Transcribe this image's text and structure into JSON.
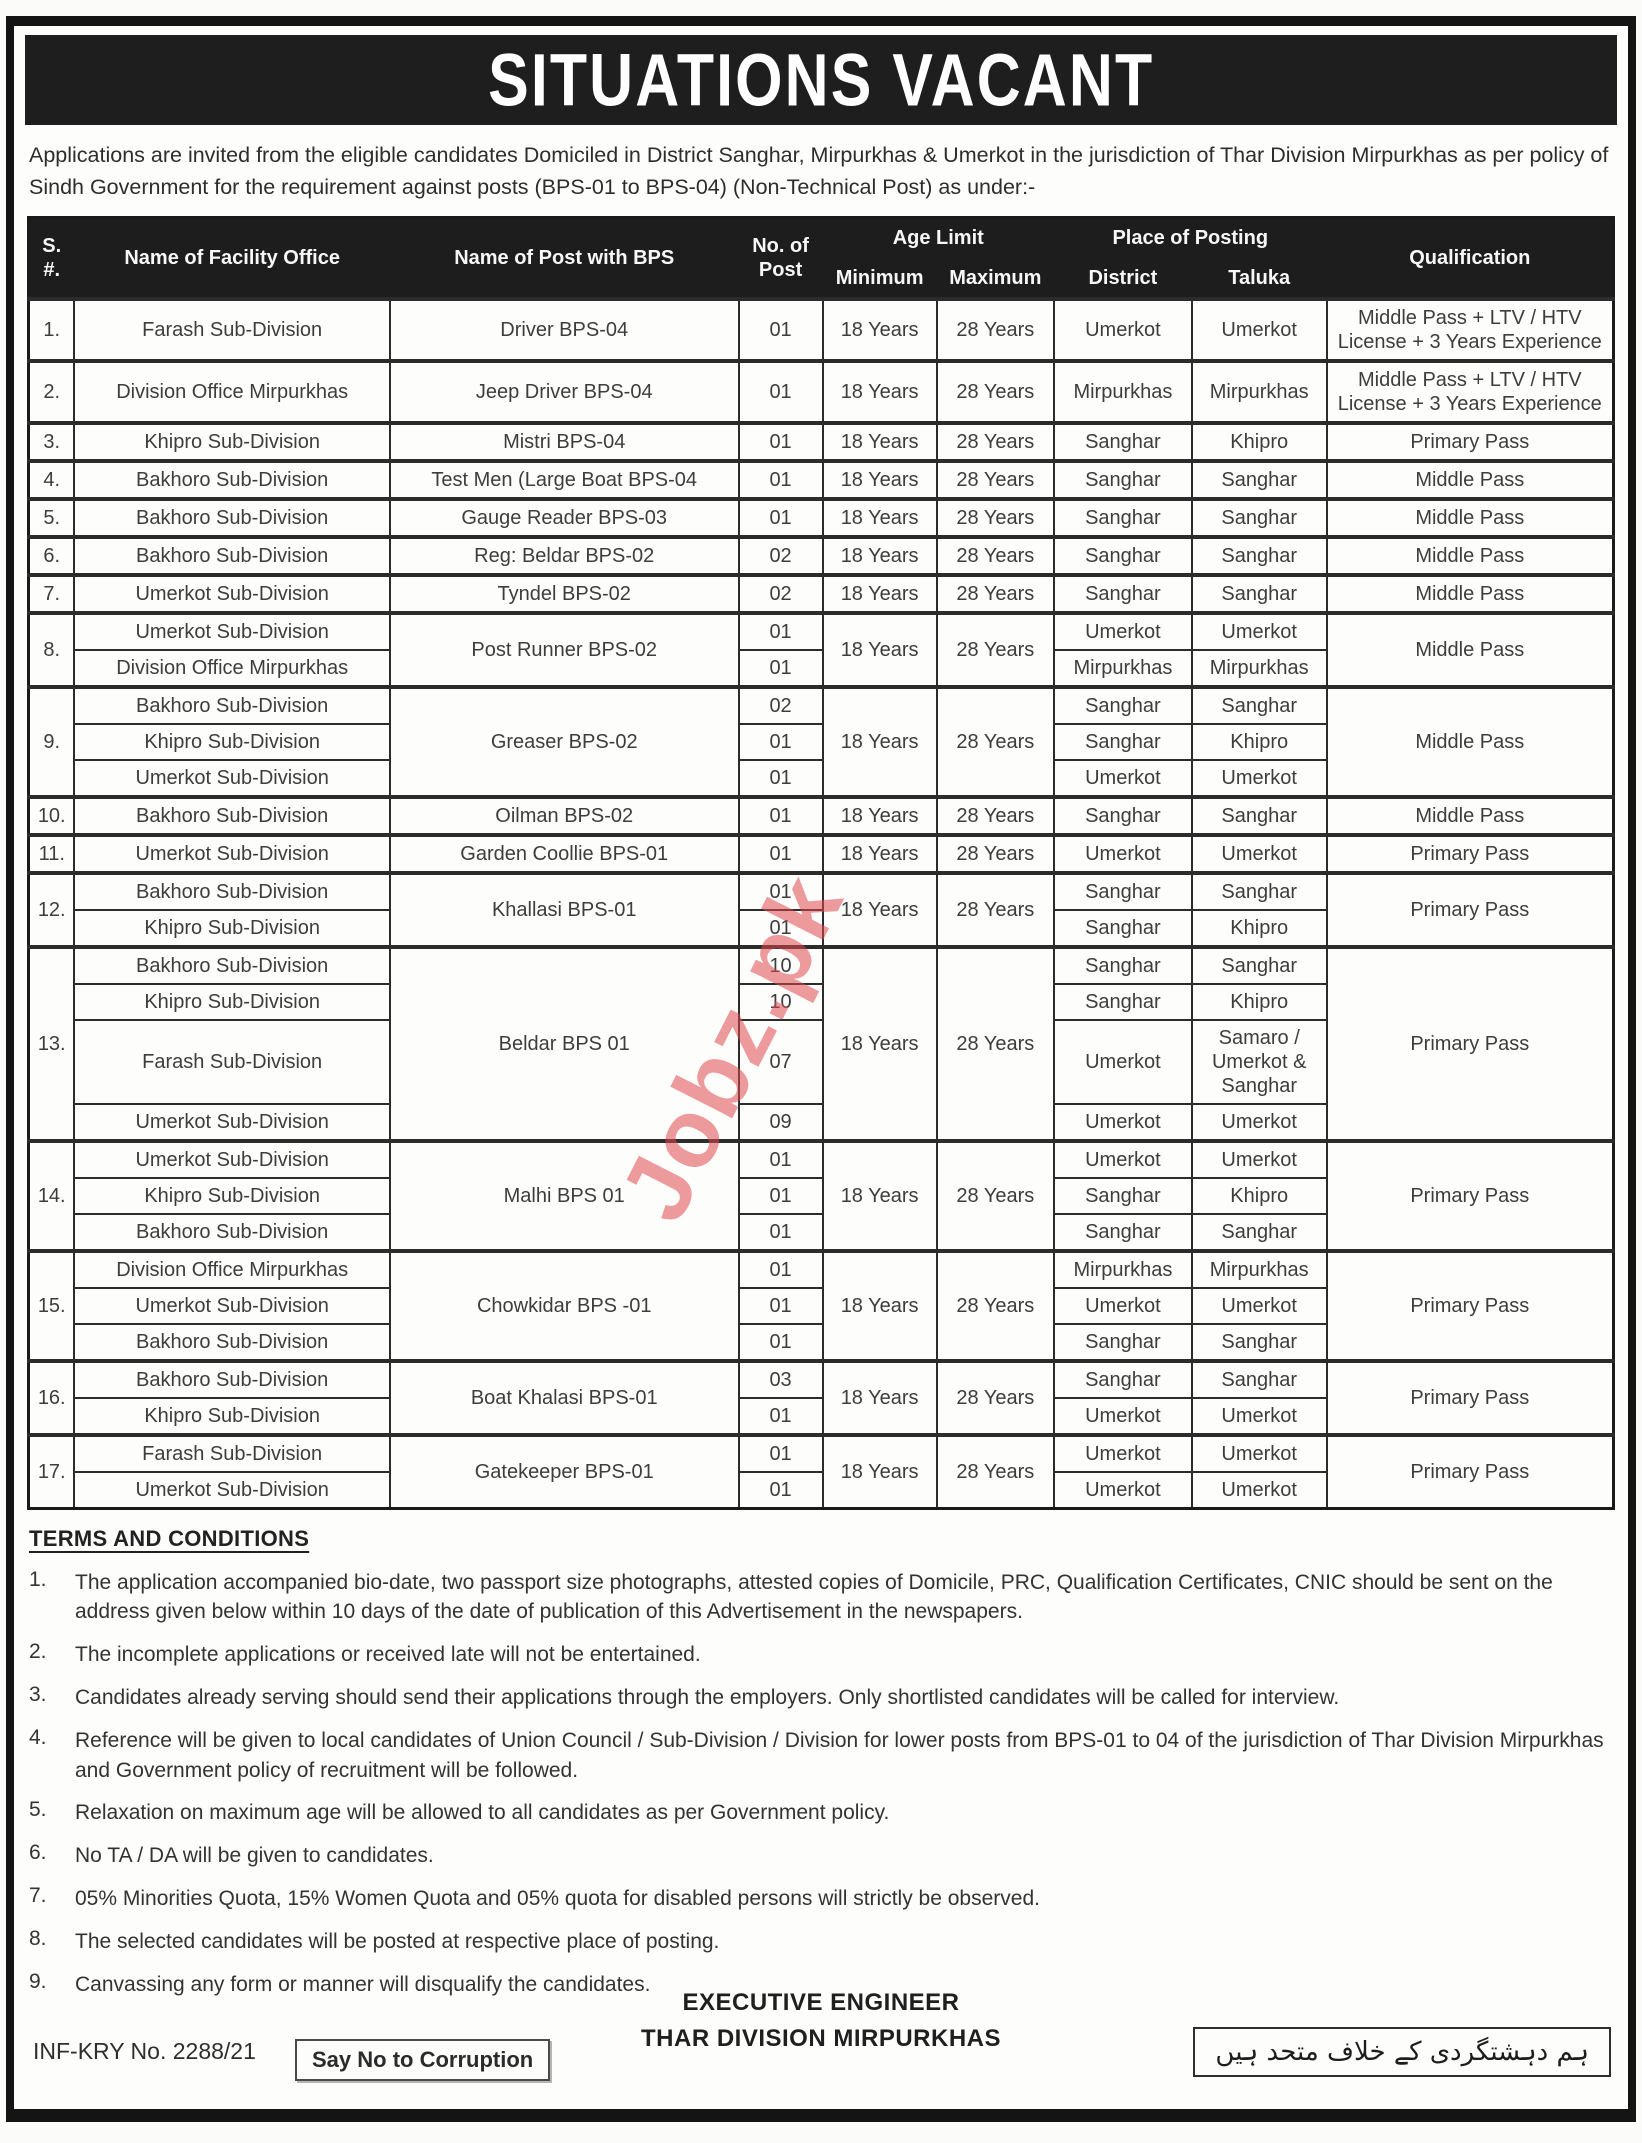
{
  "title": "SITUATIONS VACANT",
  "intro": "Applications are invited from the eligible candidates Domiciled in District Sanghar, Mirpurkhas & Umerkot in the jurisdiction of Thar Division Mirpurkhas as per policy of Sindh Government for the requirement against posts (BPS-01 to BPS-04) (Non-Technical Post) as under:-",
  "watermark": "Jobz.pk",
  "colors": {
    "band": "#1e1e1e",
    "header_bg": "#1d1d1d",
    "border": "#2c2c2c",
    "watermark_red": "#e0484e"
  },
  "table": {
    "headers": {
      "sn": "S. #.",
      "facility": "Name of Facility Office",
      "post": "Name of Post with BPS",
      "no_of_post": "No. of Post",
      "age_limit": "Age Limit",
      "minimum": "Minimum",
      "maximum": "Maximum",
      "place_of_posting": "Place of Posting",
      "district": "District",
      "taluka": "Taluka",
      "qualification": "Qualification"
    },
    "rows": [
      {
        "sn": "1.",
        "post": "Driver BPS-04",
        "min": "18 Years",
        "max": "28 Years",
        "qualification": "Middle Pass + LTV / HTV License + 3 Years Experience",
        "subs": [
          {
            "office": "Farash Sub-Division",
            "posts": "01",
            "district": "Umerkot",
            "taluka": "Umerkot"
          }
        ]
      },
      {
        "sn": "2.",
        "post": "Jeep Driver BPS-04",
        "min": "18 Years",
        "max": "28 Years",
        "qualification": "Middle Pass + LTV / HTV License + 3 Years Experience",
        "subs": [
          {
            "office": "Division Office Mirpurkhas",
            "posts": "01",
            "district": "Mirpurkhas",
            "taluka": "Mirpurkhas"
          }
        ]
      },
      {
        "sn": "3.",
        "post": "Mistri BPS-04",
        "min": "18 Years",
        "max": "28 Years",
        "qualification": "Primary Pass",
        "subs": [
          {
            "office": "Khipro Sub-Division",
            "posts": "01",
            "district": "Sanghar",
            "taluka": "Khipro"
          }
        ]
      },
      {
        "sn": "4.",
        "post": "Test Men (Large Boat BPS-04",
        "min": "18 Years",
        "max": "28 Years",
        "qualification": "Middle Pass",
        "subs": [
          {
            "office": "Bakhoro Sub-Division",
            "posts": "01",
            "district": "Sanghar",
            "taluka": "Sanghar"
          }
        ]
      },
      {
        "sn": "5.",
        "post": "Gauge Reader BPS-03",
        "min": "18 Years",
        "max": "28 Years",
        "qualification": "Middle Pass",
        "subs": [
          {
            "office": "Bakhoro Sub-Division",
            "posts": "01",
            "district": "Sanghar",
            "taluka": "Sanghar"
          }
        ]
      },
      {
        "sn": "6.",
        "post": "Reg: Beldar BPS-02",
        "min": "18 Years",
        "max": "28 Years",
        "qualification": "Middle Pass",
        "subs": [
          {
            "office": "Bakhoro Sub-Division",
            "posts": "02",
            "district": "Sanghar",
            "taluka": "Sanghar"
          }
        ]
      },
      {
        "sn": "7.",
        "post": "Tyndel BPS-02",
        "min": "18 Years",
        "max": "28 Years",
        "qualification": "Middle Pass",
        "subs": [
          {
            "office": "Umerkot Sub-Division",
            "posts": "02",
            "district": "Sanghar",
            "taluka": "Sanghar"
          }
        ]
      },
      {
        "sn": "8.",
        "post": "Post Runner BPS-02",
        "min": "18 Years",
        "max": "28 Years",
        "qualification": "Middle Pass",
        "subs": [
          {
            "office": "Umerkot Sub-Division",
            "posts": "01",
            "district": "Umerkot",
            "taluka": "Umerkot"
          },
          {
            "office": "Division Office Mirpurkhas",
            "posts": "01",
            "district": "Mirpurkhas",
            "taluka": "Mirpurkhas"
          }
        ]
      },
      {
        "sn": "9.",
        "post": "Greaser BPS-02",
        "min": "18 Years",
        "max": "28 Years",
        "qualification": "Middle Pass",
        "subs": [
          {
            "office": "Bakhoro Sub-Division",
            "posts": "02",
            "district": "Sanghar",
            "taluka": "Sanghar"
          },
          {
            "office": "Khipro Sub-Division",
            "posts": "01",
            "district": "Sanghar",
            "taluka": "Khipro"
          },
          {
            "office": "Umerkot Sub-Division",
            "posts": "01",
            "district": "Umerkot",
            "taluka": "Umerkot"
          }
        ]
      },
      {
        "sn": "10.",
        "post": "Oilman BPS-02",
        "min": "18 Years",
        "max": "28 Years",
        "qualification": "Middle Pass",
        "subs": [
          {
            "office": "Bakhoro Sub-Division",
            "posts": "01",
            "district": "Sanghar",
            "taluka": "Sanghar"
          }
        ]
      },
      {
        "sn": "11.",
        "post": "Garden Coollie BPS-01",
        "min": "18 Years",
        "max": "28 Years",
        "qualification": "Primary Pass",
        "subs": [
          {
            "office": "Umerkot Sub-Division",
            "posts": "01",
            "district": "Umerkot",
            "taluka": "Umerkot"
          }
        ]
      },
      {
        "sn": "12.",
        "post": "Khallasi BPS-01",
        "min": "18 Years",
        "max": "28 Years",
        "qualification": "Primary Pass",
        "subs": [
          {
            "office": "Bakhoro Sub-Division",
            "posts": "01",
            "district": "Sanghar",
            "taluka": "Sanghar"
          },
          {
            "office": "Khipro Sub-Division",
            "posts": "01",
            "district": "Sanghar",
            "taluka": "Khipro"
          }
        ]
      },
      {
        "sn": "13.",
        "post": "Beldar BPS 01",
        "min": "18 Years",
        "max": "28 Years",
        "qualification": "Primary Pass",
        "subs": [
          {
            "office": "Bakhoro Sub-Division",
            "posts": "10",
            "district": "Sanghar",
            "taluka": "Sanghar"
          },
          {
            "office": "Khipro Sub-Division",
            "posts": "10",
            "district": "Sanghar",
            "taluka": "Khipro"
          },
          {
            "office": "Farash Sub-Division",
            "posts": "07",
            "district": "Umerkot",
            "taluka": "Samaro / Umerkot & Sanghar"
          },
          {
            "office": "Umerkot Sub-Division",
            "posts": "09",
            "district": "Umerkot",
            "taluka": "Umerkot"
          }
        ]
      },
      {
        "sn": "14.",
        "post": "Malhi BPS 01",
        "min": "18 Years",
        "max": "28 Years",
        "qualification": "Primary Pass",
        "subs": [
          {
            "office": "Umerkot Sub-Division",
            "posts": "01",
            "district": "Umerkot",
            "taluka": "Umerkot"
          },
          {
            "office": "Khipro Sub-Division",
            "posts": "01",
            "district": "Sanghar",
            "taluka": "Khipro"
          },
          {
            "office": "Bakhoro Sub-Division",
            "posts": "01",
            "district": "Sanghar",
            "taluka": "Sanghar"
          }
        ]
      },
      {
        "sn": "15.",
        "post": "Chowkidar BPS -01",
        "min": "18 Years",
        "max": "28 Years",
        "qualification": "Primary Pass",
        "subs": [
          {
            "office": "Division Office Mirpurkhas",
            "posts": "01",
            "district": "Mirpurkhas",
            "taluka": "Mirpurkhas"
          },
          {
            "office": "Umerkot Sub-Division",
            "posts": "01",
            "district": "Umerkot",
            "taluka": "Umerkot"
          },
          {
            "office": "Bakhoro Sub-Division",
            "posts": "01",
            "district": "Sanghar",
            "taluka": "Sanghar"
          }
        ]
      },
      {
        "sn": "16.",
        "post": "Boat Khalasi BPS-01",
        "min": "18 Years",
        "max": "28 Years",
        "qualification": "Primary Pass",
        "subs": [
          {
            "office": "Bakhoro Sub-Division",
            "posts": "03",
            "district": "Sanghar",
            "taluka": "Sanghar"
          },
          {
            "office": "Khipro Sub-Division",
            "posts": "01",
            "district": "Umerkot",
            "taluka": "Umerkot"
          }
        ]
      },
      {
        "sn": "17.",
        "post": "Gatekeeper BPS-01",
        "min": "18 Years",
        "max": "28 Years",
        "qualification": "Primary Pass",
        "subs": [
          {
            "office": "Farash Sub-Division",
            "posts": "01",
            "district": "Umerkot",
            "taluka": "Umerkot"
          },
          {
            "office": "Umerkot Sub-Division",
            "posts": "01",
            "district": "Umerkot",
            "taluka": "Umerkot"
          }
        ]
      }
    ]
  },
  "terms": {
    "heading": "TERMS AND CONDITIONS",
    "items": [
      "The application accompanied bio-date, two passport size photographs, attested copies of Domicile, PRC, Qualification Certificates, CNIC should be sent on the address given below within 10 days of the date of publication of this Advertisement in the newspapers.",
      "The incomplete applications or received late will not be entertained.",
      "Candidates already serving should send their applications through the employers. Only shortlisted candidates will be called for interview.",
      "Reference will be given to local candidates of Union Council / Sub-Division / Division for lower posts from BPS-01 to 04 of the jurisdiction of Thar Division Mirpurkhas and Government policy of recruitment will be followed.",
      "Relaxation on maximum age will be allowed to all candidates as per Government policy.",
      "No TA / DA will be given to candidates.",
      "05% Minorities Quota, 15% Women Quota and 05% quota for disabled persons will strictly be observed.",
      "The selected candidates will be posted at respective place of posting.",
      "Canvassing any form or manner will disqualify the candidates."
    ]
  },
  "footer": {
    "ref_no": "INF-KRY No. 2288/21",
    "slogan": "Say No to Corruption",
    "signature_line1": "EXECUTIVE ENGINEER",
    "signature_line2": "THAR DIVISION MIRPURKHAS",
    "urdu_slogan": "ہم دہشتگردی کے خلاف متحد ہیں"
  }
}
